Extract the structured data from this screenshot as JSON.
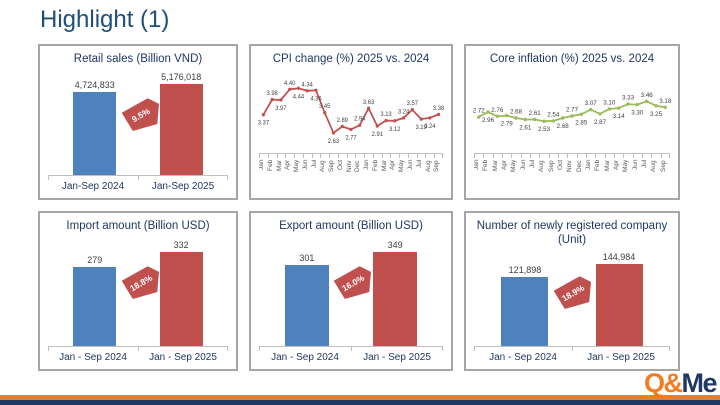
{
  "title": "Highlight (1)",
  "logo": {
    "part1": "Q&",
    "part2": "Me"
  },
  "colors": {
    "blue_bar": "#4f81bd",
    "red_bar": "#c0504d",
    "green_line": "#9bbb59",
    "navy": "#1f3864",
    "title_navy": "#1f4e79",
    "orange": "#f47b20",
    "axis_gray": "#bfbfbf",
    "label_gray": "#404040"
  },
  "chart_data": [
    {
      "type": "bar",
      "title": "Retail sales (Billion VND)",
      "categories": [
        "Jan-Sep 2024",
        "Jan-Sep 2025"
      ],
      "values": [
        4724833,
        5176018
      ],
      "value_labels": [
        "4,724,833",
        "5,176,018"
      ],
      "growth_badge": "9.5%",
      "bar_colors": [
        "#4f81bd",
        "#c0504d"
      ],
      "ylim": [
        0,
        5500000
      ]
    },
    {
      "type": "line",
      "title": "CPI change (%) 2025 vs. 2024",
      "x": [
        "Jan",
        "Feb",
        "Mar",
        "Apr",
        "May",
        "Jun",
        "Jul",
        "Aug",
        "Sep",
        "Oct",
        "Nov",
        "Dec",
        "Jan",
        "Feb",
        "Mar",
        "Apr",
        "May",
        "Jun",
        "Jul",
        "Aug",
        "Sep"
      ],
      "values": [
        3.37,
        3.98,
        3.97,
        4.4,
        4.44,
        4.34,
        4.36,
        3.45,
        2.63,
        2.89,
        2.77,
        2.94,
        3.63,
        2.91,
        3.13,
        3.12,
        3.24,
        3.57,
        3.19,
        3.24,
        3.38
      ],
      "label_positions": [
        "b",
        "a",
        "b",
        "a",
        "b",
        "a",
        "b",
        "a",
        "b",
        "a",
        "b",
        "a",
        "a",
        "b",
        "a",
        "b",
        "a",
        "a",
        "b",
        "b",
        "a"
      ],
      "color": "#c0504d",
      "ylim": [
        2.3,
        4.9
      ],
      "legend": "none",
      "grid": false
    },
    {
      "type": "line",
      "title": "Core inflation (%) 2025 vs. 2024",
      "x": [
        "Jan",
        "Feb",
        "Mar",
        "Apr",
        "May",
        "Jun",
        "Jul",
        "Aug",
        "Sep",
        "Oct",
        "Nov",
        "Dec",
        "Jan",
        "Feb",
        "Mar",
        "Apr",
        "May",
        "Jun",
        "Jul",
        "Aug",
        "Sep"
      ],
      "values": [
        2.72,
        2.96,
        2.76,
        2.79,
        2.68,
        2.61,
        2.61,
        2.53,
        2.54,
        2.68,
        2.77,
        2.85,
        3.07,
        2.87,
        3.1,
        3.14,
        3.33,
        3.3,
        3.46,
        3.25,
        3.18
      ],
      "label_positions": [
        "a",
        "b",
        "a",
        "b",
        "a",
        "b",
        "a",
        "b",
        "a",
        "b",
        "a",
        "b",
        "a",
        "b",
        "a",
        "b",
        "a",
        "b",
        "a",
        "b",
        "a"
      ],
      "color": "#9bbb59",
      "ylim": [
        1.6,
        4.6
      ],
      "legend": "none",
      "grid": false
    },
    {
      "type": "bar",
      "title": "Import amount (Billion USD)",
      "categories": [
        "Jan - Sep 2024",
        "Jan - Sep 2025"
      ],
      "values": [
        279,
        332
      ],
      "value_labels": [
        "279",
        "332"
      ],
      "growth_badge": "18.8%",
      "bar_colors": [
        "#4f81bd",
        "#c0504d"
      ],
      "ylim": [
        0,
        360
      ]
    },
    {
      "type": "bar",
      "title": "Export amount (Billion USD)",
      "categories": [
        "Jan - Sep 2024",
        "Jan - Sep 2025"
      ],
      "values": [
        301,
        349
      ],
      "value_labels": [
        "301",
        "349"
      ],
      "growth_badge": "16.0%",
      "bar_colors": [
        "#4f81bd",
        "#c0504d"
      ],
      "ylim": [
        0,
        380
      ]
    },
    {
      "type": "bar",
      "title": "Number of newly registered company (Unit)",
      "categories": [
        "Jan - Sep 2024",
        "Jan - Sep 2025"
      ],
      "values": [
        121898,
        144984
      ],
      "value_labels": [
        "121,898",
        "144,984"
      ],
      "growth_badge": "18.9%",
      "bar_colors": [
        "#4f81bd",
        "#c0504d"
      ],
      "ylim": [
        0,
        160000
      ]
    }
  ]
}
